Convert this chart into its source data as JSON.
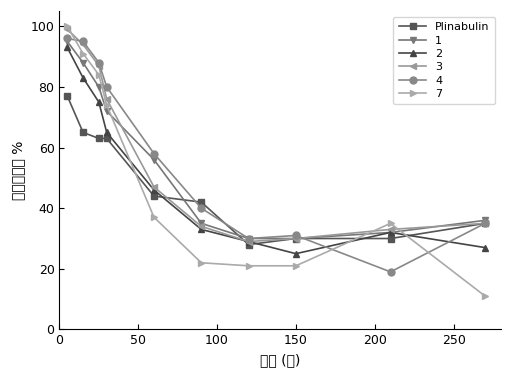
{
  "title": "",
  "xlabel": "时间 (分)",
  "ylabel": "残余百分比 %",
  "series": {
    "Plinabulin": {
      "x": [
        5,
        15,
        25,
        30,
        60,
        90,
        120,
        150,
        210,
        270
      ],
      "y": [
        77,
        65,
        63,
        63,
        44,
        42,
        28,
        30,
        30,
        35
      ],
      "marker": "s",
      "color": "#555555",
      "linestyle": "-"
    },
    "1": {
      "x": [
        5,
        15,
        25,
        30,
        60,
        90,
        120,
        150,
        210,
        270
      ],
      "y": [
        95,
        88,
        80,
        72,
        56,
        35,
        30,
        30,
        32,
        36
      ],
      "marker": "v",
      "color": "#777777",
      "linestyle": "-"
    },
    "2": {
      "x": [
        5,
        15,
        25,
        30,
        60,
        90,
        120,
        150,
        210,
        270
      ],
      "y": [
        93,
        83,
        75,
        65,
        46,
        33,
        29,
        25,
        32,
        27
      ],
      "marker": "^",
      "color": "#444444",
      "linestyle": "-"
    },
    "3": {
      "x": [
        5,
        15,
        25,
        30,
        60,
        90,
        120,
        150,
        210,
        270
      ],
      "y": [
        99,
        94,
        87,
        76,
        47,
        34,
        29,
        30,
        33,
        35
      ],
      "marker": "<",
      "color": "#999999",
      "linestyle": "-"
    },
    "4": {
      "x": [
        5,
        15,
        25,
        30,
        60,
        90,
        120,
        150,
        210,
        270
      ],
      "y": [
        96,
        95,
        88,
        80,
        58,
        40,
        30,
        31,
        19,
        35
      ],
      "marker": "o",
      "color": "#888888",
      "linestyle": "-"
    },
    "7": {
      "x": [
        5,
        15,
        25,
        30,
        60,
        90,
        120,
        150,
        210,
        270
      ],
      "y": [
        100,
        91,
        84,
        74,
        37,
        22,
        21,
        21,
        35,
        11
      ],
      "marker": ">",
      "color": "#aaaaaa",
      "linestyle": "-"
    }
  },
  "xlim": [
    0,
    280
  ],
  "ylim": [
    0,
    105
  ],
  "xticks": [
    0,
    50,
    100,
    150,
    200,
    250
  ],
  "yticks": [
    0,
    20,
    40,
    60,
    80,
    100
  ],
  "legend_order": [
    "Plinabulin",
    "1",
    "2",
    "3",
    "4",
    "7"
  ]
}
